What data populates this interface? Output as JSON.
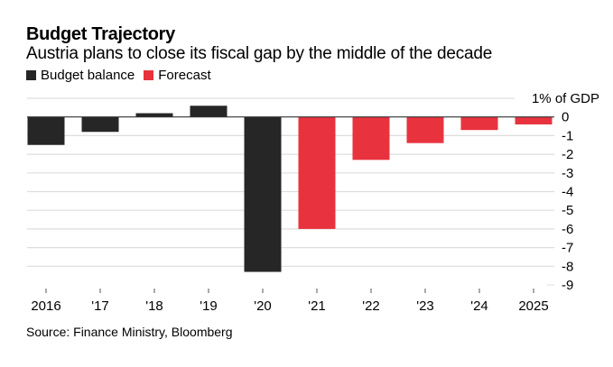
{
  "chart_data": {
    "type": "bar",
    "title": "Budget Trajectory",
    "subtitle": "Austria plans to close its fiscal gap by the middle of the decade",
    "categories": [
      "2016",
      "'17",
      "'18",
      "'19",
      "'20",
      "'21",
      "'22",
      "'23",
      "'24",
      "2025"
    ],
    "values": [
      -1.5,
      -0.8,
      0.2,
      0.6,
      -8.3,
      -6.0,
      -2.3,
      -1.4,
      -0.7,
      -0.4
    ],
    "series_assignment": [
      "Budget balance",
      "Budget balance",
      "Budget balance",
      "Budget balance",
      "Budget balance",
      "Forecast",
      "Forecast",
      "Forecast",
      "Forecast",
      "Forecast"
    ],
    "legend": [
      {
        "name": "Budget balance",
        "color": "#262626"
      },
      {
        "name": "Forecast",
        "color": "#e8333e"
      }
    ],
    "legend_position": "top-left",
    "ylabel": "% of GDP",
    "y_ticks": [
      1,
      0,
      -1,
      -2,
      -3,
      -4,
      -5,
      -6,
      -7,
      -8,
      -9
    ],
    "y_tick_labels": [
      "1% of GDP",
      "0",
      "-1",
      "-2",
      "-3",
      "-4",
      "-5",
      "-6",
      "-7",
      "-8",
      "-9"
    ],
    "ylim": [
      -9,
      1
    ],
    "y_axis_side": "right",
    "grid": true,
    "xlabel": "",
    "source": "Source: Finance Ministry, Bloomberg"
  },
  "colors": {
    "grid": "#dddddd",
    "zero_line": "#333333",
    "tick": "#555555"
  }
}
